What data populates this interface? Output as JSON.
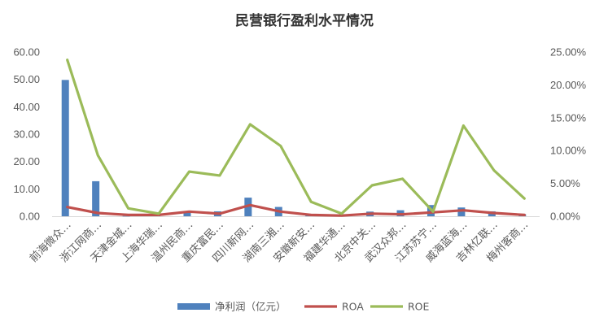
{
  "chart_data": {
    "type": "bar",
    "title": "民营银行盈利水平情况",
    "categories": [
      "前海微众…",
      "浙江网商…",
      "天津金城…",
      "上海华瑞…",
      "温州民商…",
      "重庆富民…",
      "四川新网…",
      "湖南三湘…",
      "安徽新安…",
      "福建华通…",
      "北京中关…",
      "武汉众邦…",
      "江苏苏宁…",
      "威海蓝海…",
      "吉林亿联…",
      "梅州客商…"
    ],
    "y_left": {
      "ticks": [
        "0.00",
        "10.00",
        "20.00",
        "30.00",
        "40.00",
        "50.00",
        "60.00"
      ],
      "ylim": [
        0,
        60
      ]
    },
    "y_right": {
      "ticks": [
        "0.00%",
        "5.00%",
        "10.00%",
        "15.00%",
        "20.00%",
        "25.00%"
      ],
      "ylim": [
        0,
        0.25
      ]
    },
    "series": [
      {
        "name": "净利润（亿元）",
        "kind": "bar",
        "axis": "left",
        "color": "#4f81bd",
        "values": [
          49.8,
          12.8,
          0.1,
          0.9,
          1.7,
          1.8,
          6.8,
          3.4,
          0.4,
          0.3,
          1.7,
          2.2,
          4.1,
          3.2,
          1.8,
          0.7
        ]
      },
      {
        "name": "ROA",
        "kind": "line",
        "axis": "right",
        "color": "#c0504d",
        "values": [
          0.014,
          0.005,
          0.002,
          0.002,
          0.007,
          0.004,
          0.017,
          0.007,
          0.002,
          0.001,
          0.004,
          0.003,
          0.006,
          0.009,
          0.005,
          0.002
        ]
      },
      {
        "name": "ROE",
        "kind": "line",
        "axis": "right",
        "color": "#9bbb59",
        "values": [
          0.238,
          0.093,
          0.012,
          0.004,
          0.068,
          0.062,
          0.14,
          0.107,
          0.022,
          0.004,
          0.047,
          0.057,
          0.007,
          0.138,
          0.07,
          0.027
        ]
      }
    ],
    "legend_position": "bottom",
    "grid": false
  }
}
